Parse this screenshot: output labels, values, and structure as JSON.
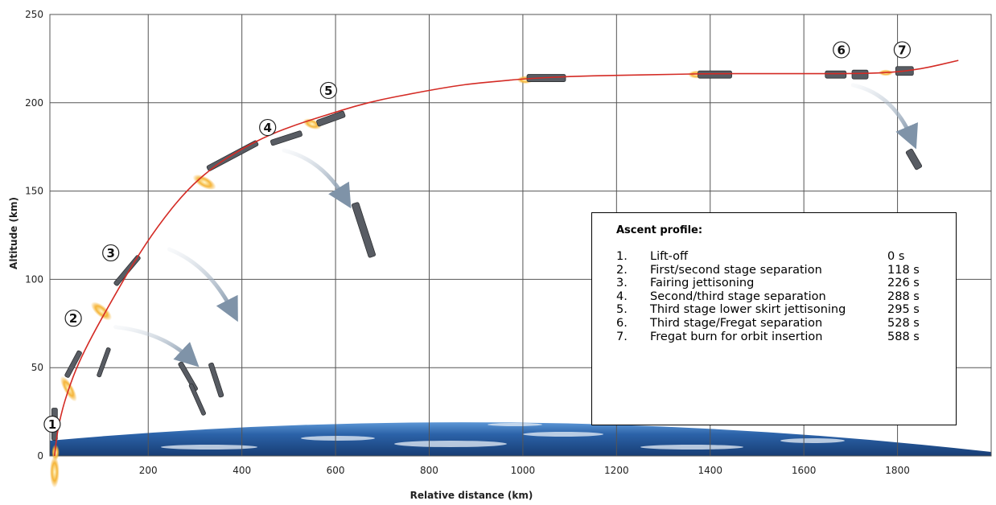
{
  "chart_data": {
    "type": "line",
    "xlabel": "Relative distance (km)",
    "ylabel": "Altitude (km)",
    "xlim": [
      -10,
      2000
    ],
    "ylim": [
      0,
      250
    ],
    "x_ticks": [
      "200",
      "400",
      "600",
      "800",
      "1000",
      "1200",
      "1400",
      "1600",
      "1800"
    ],
    "y_ticks": [
      "0",
      "50",
      "100",
      "150",
      "200",
      "250"
    ],
    "grid": true,
    "trajectory": {
      "x": [
        0,
        5,
        15,
        30,
        50,
        80,
        120,
        170,
        220,
        280,
        340,
        400,
        460,
        520,
        580,
        640,
        700,
        760,
        820,
        880,
        940,
        1000,
        1100,
        1200,
        1300,
        1400,
        1500,
        1600,
        1700,
        1780,
        1850,
        1930
      ],
      "y": [
        0,
        12,
        25,
        38,
        52,
        68,
        87,
        110,
        130,
        150,
        164,
        174,
        182,
        188,
        193,
        198,
        202,
        205,
        208,
        210.5,
        212,
        213.5,
        215,
        215.5,
        216,
        216.5,
        216.5,
        216.5,
        216.5,
        217,
        219,
        224
      ]
    },
    "event_markers": [
      {
        "label": "1",
        "x": -5,
        "y": 18
      },
      {
        "label": "2",
        "x": 40,
        "y": 78
      },
      {
        "label": "3",
        "x": 120,
        "y": 115
      },
      {
        "label": "4",
        "x": 455,
        "y": 186
      },
      {
        "label": "5",
        "x": 585,
        "y": 207
      },
      {
        "label": "6",
        "x": 1680,
        "y": 230
      },
      {
        "label": "7",
        "x": 1810,
        "y": 230
      }
    ],
    "colors": {
      "trajectory": "#d42b25",
      "grid": "#555555",
      "earth": "#2f6db8"
    }
  },
  "legend": {
    "title": "Ascent profile:",
    "events": [
      {
        "num": "1.",
        "desc": "Lift-off",
        "time": "0 s"
      },
      {
        "num": "2.",
        "desc": "First/second stage separation",
        "time": "118 s"
      },
      {
        "num": "3.",
        "desc": "Fairing jettisoning",
        "time": "226 s"
      },
      {
        "num": "4.",
        "desc": "Second/third stage separation",
        "time": "288 s"
      },
      {
        "num": "5.",
        "desc": "Third stage lower skirt jettisoning",
        "time": "295 s"
      },
      {
        "num": "6.",
        "desc": "Third stage/Fregat separation",
        "time": "528 s"
      },
      {
        "num": "7.",
        "desc": "Fregat burn for orbit insertion",
        "time": "588 s"
      }
    ]
  }
}
